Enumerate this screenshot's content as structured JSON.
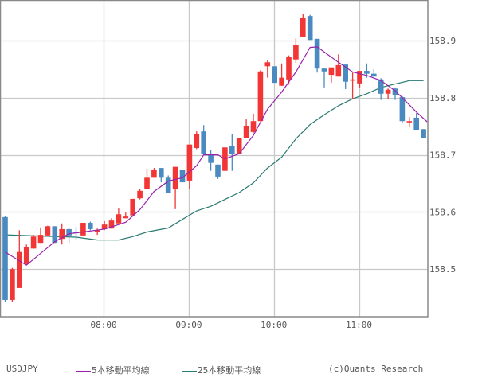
{
  "chart_data": {
    "type": "candlestick",
    "title": "",
    "symbol": "USDJPY",
    "interval": "5min",
    "xlabel": "",
    "ylabel": "",
    "ylim": [
      158.415,
      158.971
    ],
    "grid": true,
    "y_ticks": [
      158.5,
      158.6,
      158.7,
      158.8,
      158.9
    ],
    "y_tick_labels": [
      "158.5",
      "158.6",
      "158.7",
      "158.8",
      "158.9"
    ],
    "x_ticks": [
      {
        "index": 14,
        "label": "08:00"
      },
      {
        "index": 26,
        "label": "09:00"
      },
      {
        "index": 38,
        "label": "10:00"
      },
      {
        "index": 50,
        "label": "11:00"
      }
    ],
    "first_bar_time": "06:50",
    "last_bar_time": "11:45",
    "candles": [
      {
        "o": 158.591,
        "h": 158.593,
        "l": 158.442,
        "c": 158.446
      },
      {
        "o": 158.446,
        "h": 158.502,
        "l": 158.442,
        "c": 158.5
      },
      {
        "o": 158.467,
        "h": 158.568,
        "l": 158.467,
        "c": 158.53
      },
      {
        "o": 158.509,
        "h": 158.543,
        "l": 158.507,
        "c": 158.539
      },
      {
        "o": 158.536,
        "h": 158.56,
        "l": 158.536,
        "c": 158.557
      },
      {
        "o": 158.546,
        "h": 158.573,
        "l": 158.546,
        "c": 158.56
      },
      {
        "o": 158.559,
        "h": 158.576,
        "l": 158.559,
        "c": 158.575
      },
      {
        "o": 158.575,
        "h": 158.575,
        "l": 158.546,
        "c": 158.546
      },
      {
        "o": 158.553,
        "h": 158.58,
        "l": 158.543,
        "c": 158.57
      },
      {
        "o": 158.57,
        "h": 158.572,
        "l": 158.546,
        "c": 158.559
      },
      {
        "o": 158.565,
        "h": 158.574,
        "l": 158.552,
        "c": 158.564
      },
      {
        "o": 158.559,
        "h": 158.581,
        "l": 158.559,
        "c": 158.581
      },
      {
        "o": 158.581,
        "h": 158.583,
        "l": 158.568,
        "c": 158.57
      },
      {
        "o": 158.566,
        "h": 158.571,
        "l": 158.56,
        "c": 158.568
      },
      {
        "o": 158.57,
        "h": 158.584,
        "l": 158.568,
        "c": 158.578
      },
      {
        "o": 158.571,
        "h": 158.589,
        "l": 158.571,
        "c": 158.585
      },
      {
        "o": 158.58,
        "h": 158.606,
        "l": 158.58,
        "c": 158.596
      },
      {
        "o": 158.589,
        "h": 158.599,
        "l": 158.589,
        "c": 158.592
      },
      {
        "o": 158.594,
        "h": 158.623,
        "l": 158.594,
        "c": 158.623
      },
      {
        "o": 158.624,
        "h": 158.64,
        "l": 158.622,
        "c": 158.637
      },
      {
        "o": 158.64,
        "h": 158.676,
        "l": 158.64,
        "c": 158.66
      },
      {
        "o": 158.66,
        "h": 158.677,
        "l": 158.66,
        "c": 158.674
      },
      {
        "o": 158.677,
        "h": 158.677,
        "l": 158.652,
        "c": 158.66
      },
      {
        "o": 158.66,
        "h": 158.664,
        "l": 158.633,
        "c": 158.633
      },
      {
        "o": 158.64,
        "h": 158.679,
        "l": 158.605,
        "c": 158.679
      },
      {
        "o": 158.674,
        "h": 158.674,
        "l": 158.652,
        "c": 158.652
      },
      {
        "o": 158.655,
        "h": 158.718,
        "l": 158.64,
        "c": 158.718
      },
      {
        "o": 158.712,
        "h": 158.741,
        "l": 158.71,
        "c": 158.736
      },
      {
        "o": 158.741,
        "h": 158.752,
        "l": 158.702,
        "c": 158.702
      },
      {
        "o": 158.702,
        "h": 158.708,
        "l": 158.672,
        "c": 158.686
      },
      {
        "o": 158.683,
        "h": 158.683,
        "l": 158.658,
        "c": 158.662
      },
      {
        "o": 158.672,
        "h": 158.713,
        "l": 158.672,
        "c": 158.713
      },
      {
        "o": 158.716,
        "h": 158.736,
        "l": 158.672,
        "c": 158.702
      },
      {
        "o": 158.702,
        "h": 158.73,
        "l": 158.702,
        "c": 158.73
      },
      {
        "o": 158.73,
        "h": 158.762,
        "l": 158.73,
        "c": 158.751
      },
      {
        "o": 158.74,
        "h": 158.772,
        "l": 158.738,
        "c": 158.759
      },
      {
        "o": 158.759,
        "h": 158.848,
        "l": 158.759,
        "c": 158.846
      },
      {
        "o": 158.855,
        "h": 158.865,
        "l": 158.835,
        "c": 158.862
      },
      {
        "o": 158.855,
        "h": 158.855,
        "l": 158.826,
        "c": 158.826
      },
      {
        "o": 158.821,
        "h": 158.86,
        "l": 158.821,
        "c": 158.835
      },
      {
        "o": 158.832,
        "h": 158.874,
        "l": 158.823,
        "c": 158.871
      },
      {
        "o": 158.867,
        "h": 158.904,
        "l": 158.861,
        "c": 158.892
      },
      {
        "o": 158.907,
        "h": 158.946,
        "l": 158.907,
        "c": 158.94
      },
      {
        "o": 158.943,
        "h": 158.945,
        "l": 158.901,
        "c": 158.901
      },
      {
        "o": 158.903,
        "h": 158.903,
        "l": 158.844,
        "c": 158.851
      },
      {
        "o": 158.851,
        "h": 158.851,
        "l": 158.818,
        "c": 158.846
      },
      {
        "o": 158.84,
        "h": 158.853,
        "l": 158.826,
        "c": 158.853
      },
      {
        "o": 158.837,
        "h": 158.876,
        "l": 158.837,
        "c": 158.857
      },
      {
        "o": 158.858,
        "h": 158.858,
        "l": 158.815,
        "c": 158.828
      },
      {
        "o": 158.83,
        "h": 158.844,
        "l": 158.797,
        "c": 158.832
      },
      {
        "o": 158.825,
        "h": 158.847,
        "l": 158.818,
        "c": 158.847
      },
      {
        "o": 158.847,
        "h": 158.86,
        "l": 158.835,
        "c": 158.842
      },
      {
        "o": 158.842,
        "h": 158.85,
        "l": 158.837,
        "c": 158.837
      },
      {
        "o": 158.832,
        "h": 158.834,
        "l": 158.796,
        "c": 158.807
      },
      {
        "o": 158.807,
        "h": 158.816,
        "l": 158.798,
        "c": 158.814
      },
      {
        "o": 158.816,
        "h": 158.818,
        "l": 158.796,
        "c": 158.804
      },
      {
        "o": 158.801,
        "h": 158.803,
        "l": 158.755,
        "c": 158.759
      },
      {
        "o": 158.758,
        "h": 158.766,
        "l": 158.748,
        "c": 158.759
      },
      {
        "o": 158.765,
        "h": 158.773,
        "l": 158.744,
        "c": 158.744
      },
      {
        "o": 158.745,
        "h": 158.745,
        "l": 158.73,
        "c": 158.73
      }
    ],
    "series": [
      {
        "name": "5本移動平均線",
        "color": "#9922aa",
        "points": [
          [
            0,
            158.53
          ],
          [
            3,
            158.507
          ],
          [
            7,
            158.548
          ],
          [
            9,
            158.562
          ],
          [
            11,
            158.565
          ],
          [
            14,
            158.57
          ],
          [
            17,
            158.582
          ],
          [
            19,
            158.604
          ],
          [
            21,
            158.636
          ],
          [
            23,
            158.654
          ],
          [
            25,
            158.66
          ],
          [
            27,
            158.681
          ],
          [
            28,
            158.7
          ],
          [
            29,
            158.7
          ],
          [
            30,
            158.7
          ],
          [
            31,
            158.693
          ],
          [
            33,
            158.702
          ],
          [
            35,
            158.734
          ],
          [
            37,
            158.78
          ],
          [
            39,
            158.81
          ],
          [
            41,
            158.845
          ],
          [
            43,
            158.888
          ],
          [
            44,
            158.889
          ],
          [
            45,
            158.88
          ],
          [
            47,
            158.862
          ],
          [
            49,
            158.845
          ],
          [
            51,
            158.839
          ],
          [
            53,
            158.83
          ],
          [
            55,
            158.812
          ],
          [
            56,
            158.8
          ],
          [
            58,
            158.775
          ],
          [
            59.5,
            158.758
          ]
        ]
      },
      {
        "name": "25本移動平均線",
        "color": "#2a7a72",
        "points": [
          [
            0,
            158.56
          ],
          [
            5,
            158.558
          ],
          [
            10,
            158.556
          ],
          [
            13,
            158.551
          ],
          [
            16,
            158.551
          ],
          [
            18,
            158.557
          ],
          [
            20,
            158.565
          ],
          [
            23,
            158.572
          ],
          [
            25,
            158.587
          ],
          [
            27,
            158.602
          ],
          [
            29,
            158.61
          ],
          [
            31,
            158.622
          ],
          [
            33,
            158.634
          ],
          [
            35,
            158.651
          ],
          [
            37,
            158.677
          ],
          [
            39,
            158.696
          ],
          [
            41,
            158.728
          ],
          [
            43,
            158.753
          ],
          [
            45,
            158.77
          ],
          [
            47,
            158.786
          ],
          [
            49,
            158.798
          ],
          [
            51,
            158.807
          ],
          [
            53,
            158.818
          ],
          [
            55,
            158.824
          ],
          [
            57,
            158.83
          ],
          [
            59,
            158.83
          ]
        ]
      }
    ],
    "colors": {
      "up": "#f23535",
      "down": "#4a8ac0",
      "grid": "#c8c8c8",
      "frame": "#888888"
    }
  },
  "legend": {
    "symbol": "USDJPY",
    "ma5_label": "5本移動平均線",
    "ma25_label": "25本移動平均線",
    "copyright": "(c)Quants Research"
  }
}
